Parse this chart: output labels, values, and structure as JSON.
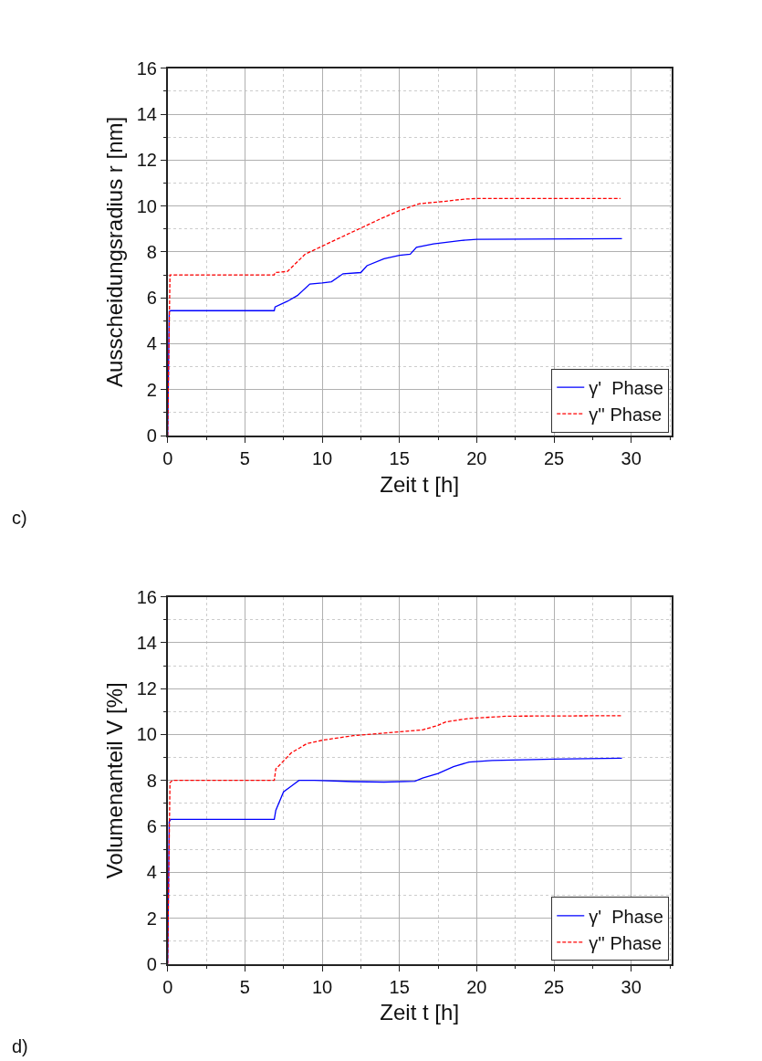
{
  "chart_data": [
    {
      "type": "line",
      "xlabel": "Zeit t [h]",
      "ylabel": "Ausscheidungsradius r [nm]",
      "annotations": [
        "c)"
      ],
      "xlim": [
        0,
        32.6
      ],
      "ylim": [
        0,
        16
      ],
      "xticks": [
        0,
        5,
        10,
        15,
        20,
        25,
        30
      ],
      "yticks": [
        0,
        2,
        4,
        6,
        8,
        10,
        12,
        14,
        16
      ],
      "grid": true,
      "legend": "bottom right",
      "series": [
        {
          "name": "γ'  Phase",
          "color": "#0000ff",
          "line_style": "solid",
          "x": [
            0,
            0.1,
            0.2,
            6.9,
            6.95,
            7.75,
            8.4,
            9.2,
            10,
            10.6,
            11.35,
            12.5,
            12.9,
            14,
            15,
            15.7,
            16.1,
            17.2,
            19,
            20,
            29.4
          ],
          "values": [
            0,
            5.4,
            5.44,
            5.44,
            5.6,
            5.85,
            6.1,
            6.6,
            6.65,
            6.7,
            7.05,
            7.1,
            7.4,
            7.7,
            7.85,
            7.9,
            8.2,
            8.35,
            8.5,
            8.55,
            8.58
          ]
        },
        {
          "name": "γ'' Phase",
          "color": "#ff0000",
          "line_style": "dashed",
          "x": [
            0,
            0.15,
            0.3,
            6.9,
            6.95,
            7.75,
            8.9,
            10,
            11.1,
            12.7,
            13.8,
            15,
            16.3,
            17.9,
            19.2,
            20.1,
            29.3
          ],
          "values": [
            0,
            7,
            7,
            7,
            7.1,
            7.15,
            7.9,
            8.25,
            8.6,
            9.1,
            9.45,
            9.8,
            10.1,
            10.2,
            10.3,
            10.33,
            10.33
          ]
        }
      ]
    },
    {
      "type": "line",
      "xlabel": "Zeit t [h]",
      "ylabel": "Volumenanteil V [%]",
      "annotations": [
        "d)"
      ],
      "xlim": [
        0,
        32.6
      ],
      "ylim": [
        0,
        16
      ],
      "xticks": [
        0,
        5,
        10,
        15,
        20,
        25,
        30
      ],
      "yticks": [
        0,
        2,
        4,
        6,
        8,
        10,
        12,
        14,
        16
      ],
      "grid": true,
      "legend": "bottom right",
      "series": [
        {
          "name": "γ'  Phase",
          "color": "#0000ff",
          "line_style": "solid",
          "x": [
            0,
            0.1,
            0.2,
            6.9,
            7.0,
            7.5,
            8.0,
            8.5,
            9.5,
            12,
            14,
            16,
            16.5,
            17.5,
            18.5,
            19.5,
            21,
            25,
            29.4
          ],
          "values": [
            0,
            6.2,
            6.3,
            6.3,
            6.7,
            7.5,
            7.75,
            8.0,
            8.0,
            7.95,
            7.93,
            7.96,
            8.1,
            8.3,
            8.6,
            8.8,
            8.87,
            8.93,
            8.97
          ]
        },
        {
          "name": "γ'' Phase",
          "color": "#ff0000",
          "line_style": "dashed",
          "x": [
            0,
            0.15,
            0.3,
            6.9,
            7.0,
            8,
            9,
            10,
            12,
            15,
            16.5,
            17.5,
            18,
            19.5,
            22,
            29.4
          ],
          "values": [
            0,
            7.9,
            8.0,
            8.0,
            8.5,
            9.2,
            9.6,
            9.75,
            9.95,
            10.12,
            10.2,
            10.4,
            10.55,
            10.7,
            10.8,
            10.82
          ]
        }
      ]
    }
  ]
}
